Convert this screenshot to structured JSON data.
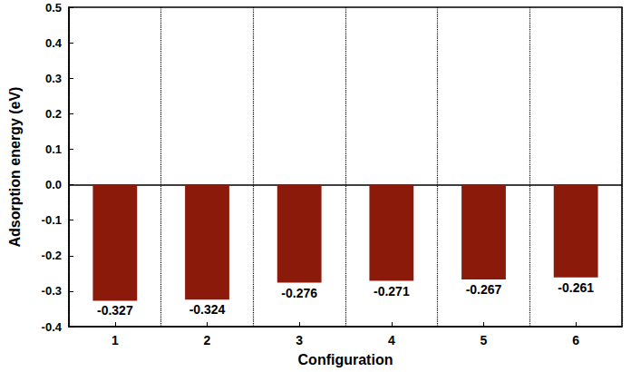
{
  "chart_data": {
    "type": "bar",
    "x_label": "Configuration",
    "y_label": "Adsorption energy (eV)",
    "categories": [
      "1",
      "2",
      "3",
      "4",
      "5",
      "6"
    ],
    "values": [
      -0.327,
      -0.324,
      -0.276,
      -0.271,
      -0.267,
      -0.261
    ],
    "color": "#8b1a0a",
    "ylim": [
      -0.4,
      0.5
    ],
    "yticks": [
      -0.4,
      -0.3,
      -0.2,
      -0.1,
      {
        "value": 0,
        "label": "0.0"
      },
      0.1,
      0.2,
      0.3,
      0.4,
      0.5
    ],
    "data_labels": true,
    "grid": false
  }
}
